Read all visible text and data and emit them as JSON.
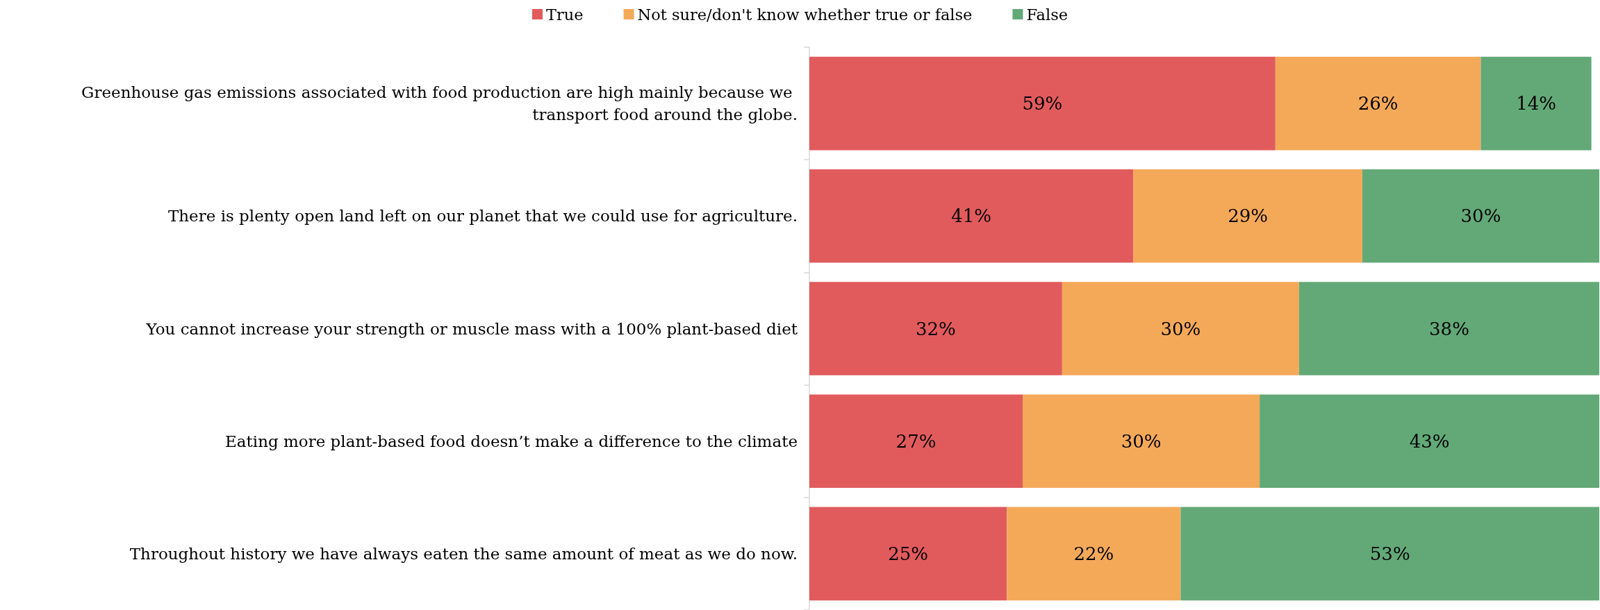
{
  "chart_data": {
    "type": "bar",
    "orientation": "horizontal",
    "stacked": true,
    "legend": "top",
    "tick_labels": "y",
    "categories": [
      "Greenhouse gas emissions associated with food production are high mainly because we transport food around the globe.",
      "There is plenty open land left on our planet that we could use for agriculture.",
      "You cannot increase your strength or muscle mass with a 100% plant-based diet",
      "Eating more plant-based food doesn’t make a difference to the climate",
      "Throughout history we have always eaten the same amount of meat as we do now."
    ],
    "series": [
      {
        "name": "True",
        "color": "#e15b5d",
        "values": [
          59,
          41,
          32,
          27,
          25
        ],
        "value_labels": [
          "59%",
          "41%",
          "32%",
          "27%",
          "25%"
        ]
      },
      {
        "name": "Not sure/don't know whether true or false",
        "color": "#f4a959",
        "values": [
          26,
          29,
          30,
          30,
          22
        ],
        "value_labels": [
          "26%",
          "29%",
          "30%",
          "30%",
          "22%"
        ]
      },
      {
        "name": "False",
        "color": "#63a978",
        "values": [
          14,
          30,
          38,
          43,
          53
        ],
        "value_labels": [
          "14%",
          "30%",
          "38%",
          "43%",
          "53%"
        ]
      }
    ]
  }
}
